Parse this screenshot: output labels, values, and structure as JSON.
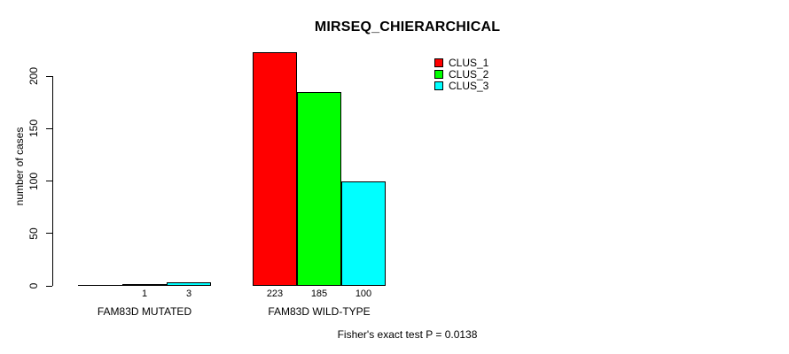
{
  "chart_data": {
    "type": "bar",
    "title": "MIRSEQ_CHIERARCHICAL",
    "ylabel": "number of cases",
    "xlabel": "",
    "categories": [
      "FAM83D MUTATED",
      "FAM83D WILD-TYPE"
    ],
    "series": [
      {
        "name": "CLUS_1",
        "color": "#ff0000",
        "values": [
          0,
          223
        ]
      },
      {
        "name": "CLUS_2",
        "color": "#00ff00",
        "values": [
          1,
          185
        ]
      },
      {
        "name": "CLUS_3",
        "color": "#00ffff",
        "values": [
          3,
          100
        ]
      }
    ],
    "bar_labels": [
      [
        "",
        "1",
        "3"
      ],
      [
        "223",
        "185",
        "100"
      ]
    ],
    "yticks": [
      0,
      50,
      100,
      150,
      200
    ],
    "ylim": [
      0,
      223
    ],
    "grid": false,
    "legend_position": "top-right",
    "annotation": "Fisher's exact test P = 0.0138"
  },
  "colors": {
    "background": "#ffffff",
    "axis": "#000000",
    "text": "#000000"
  }
}
